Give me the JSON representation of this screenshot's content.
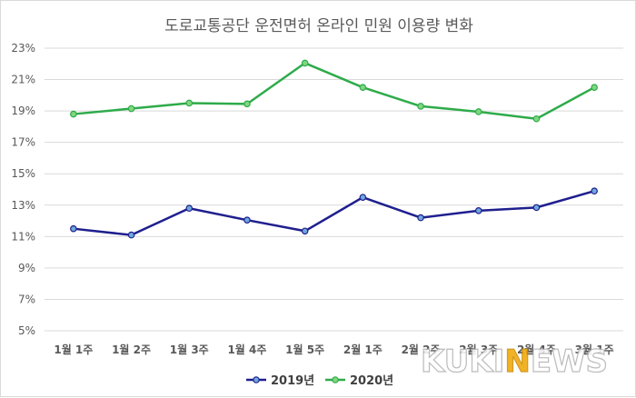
{
  "chart_data": {
    "type": "line",
    "title": "도로교통공단 운전면허 온라인 민원 이용량 변화",
    "categories": [
      "1월 1주",
      "1월 2주",
      "1월 3주",
      "1월 4주",
      "1월 5주",
      "2월 1주",
      "2월 2주",
      "2월 3주",
      "2월 4주",
      "3월 1주"
    ],
    "ylim": [
      5,
      23
    ],
    "yticks": [
      "5%",
      "7%",
      "9%",
      "11%",
      "13%",
      "15%",
      "17%",
      "19%",
      "21%",
      "23%"
    ],
    "ytick_values": [
      5,
      7,
      9,
      11,
      13,
      15,
      17,
      19,
      21,
      23
    ],
    "grid": true,
    "legend_position": "bottom",
    "series": [
      {
        "name": "2019년",
        "color": "#1f1f8f",
        "values": [
          11.5,
          11.1,
          12.8,
          12.05,
          11.35,
          13.5,
          12.2,
          12.65,
          12.85,
          13.9
        ]
      },
      {
        "name": "2020년",
        "color": "#2eab4a",
        "values": [
          18.8,
          19.15,
          19.5,
          19.45,
          22.05,
          20.5,
          19.3,
          18.95,
          18.5,
          20.5
        ]
      }
    ]
  },
  "watermark": {
    "text_a": "KUKI",
    "text_b": "N",
    "text_c": "EWS"
  }
}
